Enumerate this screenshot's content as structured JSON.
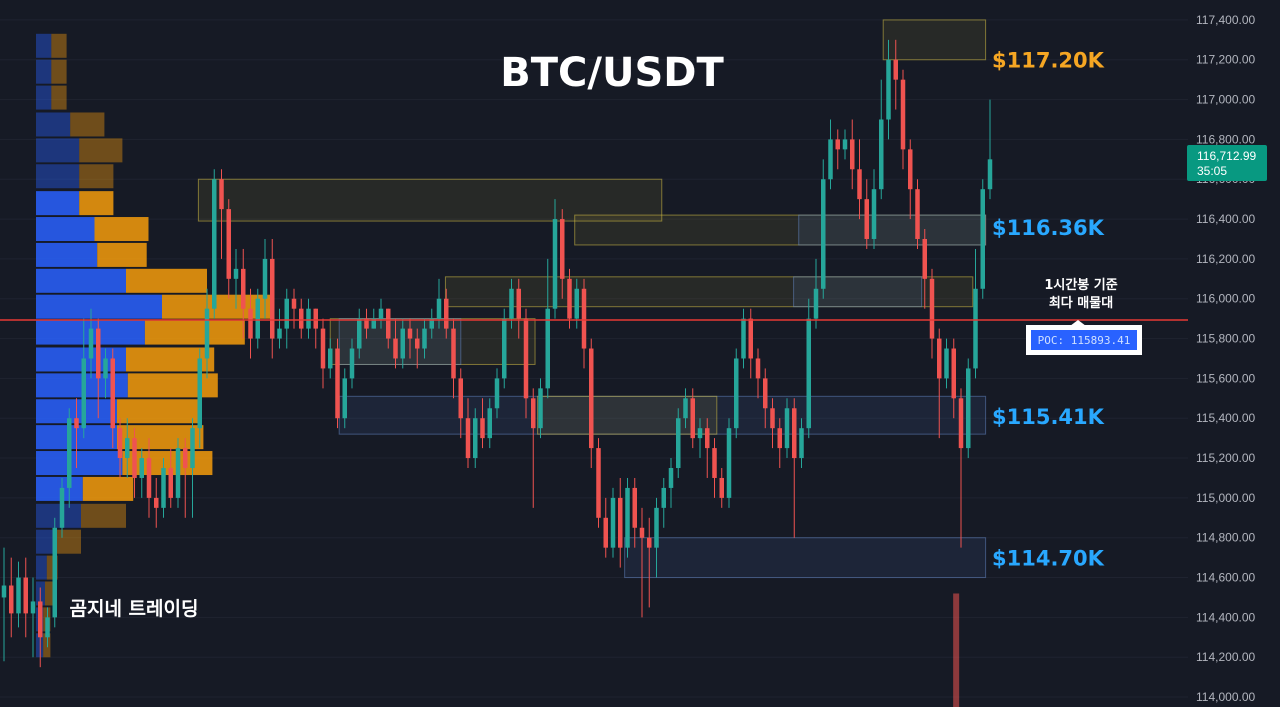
{
  "header": {
    "title": "BTC/USDT"
  },
  "watermark": "곰지네 트레이딩",
  "annotation": {
    "line1": "1시간봉 기준",
    "line2": "최다 매물대"
  },
  "poc_label": "POC: 115893.41",
  "current_price": {
    "price": "116,712.99",
    "countdown": "35:05",
    "color": "#089981"
  },
  "colors": {
    "up": "#26a69a",
    "down": "#ef5350",
    "poc_line": "#e53935",
    "level_gold": "#f5a623",
    "level_blue": "#29a8ff",
    "vp_blue": "#2962ff",
    "vp_orange": "#f59c0c"
  },
  "chart_data": {
    "type": "candlestick",
    "title": "BTC/USDT",
    "ylim": [
      113950,
      117500
    ],
    "y_ticks": [
      "117,400.00",
      "117,200.00",
      "117,000.00",
      "116,800.00",
      "116,600.00",
      "116,400.00",
      "116,200.00",
      "116,000.00",
      "115,800.00",
      "115,600.00",
      "115,400.00",
      "115,200.00",
      "115,000.00",
      "114,800.00",
      "114,600.00",
      "114,400.00",
      "114,200.00",
      "114,000.00"
    ],
    "y_tick_values": [
      117400,
      117200,
      117000,
      116800,
      116600,
      116400,
      116200,
      116000,
      115800,
      115600,
      115400,
      115200,
      115000,
      114800,
      114600,
      114400,
      114200,
      114000
    ],
    "poc": 115893.41,
    "levels": [
      {
        "label": "$117.20K",
        "value": 117200,
        "color": "#f5a623"
      },
      {
        "label": "$116.36K",
        "value": 116360,
        "color": "#29a8ff"
      },
      {
        "label": "$115.41K",
        "value": 115410,
        "color": "#29a8ff"
      },
      {
        "label": "$114.70K",
        "value": 114700,
        "color": "#29a8ff"
      }
    ],
    "zones": [
      {
        "kind": "supply",
        "x_start": 0.155,
        "x_end": 0.517,
        "top": 116600,
        "bottom": 116390
      },
      {
        "kind": "supply",
        "x_start": 0.449,
        "x_end": 0.77,
        "top": 116420,
        "bottom": 116270
      },
      {
        "kind": "demand",
        "x_start": 0.624,
        "x_end": 0.77,
        "top": 116420,
        "bottom": 116270
      },
      {
        "kind": "supply",
        "x_start": 0.348,
        "x_end": 0.76,
        "top": 116110,
        "bottom": 115960
      },
      {
        "kind": "demand",
        "x_start": 0.62,
        "x_end": 0.72,
        "top": 116110,
        "bottom": 115960
      },
      {
        "kind": "supply",
        "x_start": 0.258,
        "x_end": 0.418,
        "top": 115900,
        "bottom": 115670
      },
      {
        "kind": "demand",
        "x_start": 0.265,
        "x_end": 0.36,
        "top": 115900,
        "bottom": 115670
      },
      {
        "kind": "demand",
        "x_start": 0.265,
        "x_end": 0.77,
        "top": 115510,
        "bottom": 115320
      },
      {
        "kind": "supply",
        "x_start": 0.42,
        "x_end": 0.56,
        "top": 115510,
        "bottom": 115320
      },
      {
        "kind": "supply",
        "x_start": 0.69,
        "x_end": 0.77,
        "top": 117400,
        "bottom": 117200
      },
      {
        "kind": "demand",
        "x_start": 0.488,
        "x_end": 0.77,
        "top": 114800,
        "bottom": 114600
      }
    ],
    "volume_profile": [
      {
        "price": 117270,
        "buy": 0.17,
        "sell": 0.17
      },
      {
        "price": 117140,
        "buy": 0.17,
        "sell": 0.17
      },
      {
        "price": 117010,
        "buy": 0.17,
        "sell": 0.17
      },
      {
        "price": 116875,
        "buy": 0.38,
        "sell": 0.38
      },
      {
        "price": 116745,
        "buy": 0.48,
        "sell": 0.48
      },
      {
        "price": 116615,
        "buy": 0.48,
        "sell": 0.38
      },
      {
        "price": 116480,
        "buy": 0.48,
        "sell": 0.38
      },
      {
        "price": 116350,
        "buy": 0.65,
        "sell": 0.6
      },
      {
        "price": 116220,
        "buy": 0.68,
        "sell": 0.55
      },
      {
        "price": 116090,
        "buy": 1.0,
        "sell": 0.9
      },
      {
        "price": 115960,
        "buy": 1.4,
        "sell": 1.25
      },
      {
        "price": 115830,
        "buy": 1.21,
        "sell": 1.11
      },
      {
        "price": 115695,
        "buy": 1.0,
        "sell": 0.98
      },
      {
        "price": 115565,
        "buy": 1.02,
        "sell": 1.0
      },
      {
        "price": 115435,
        "buy": 0.9,
        "sell": 0.92
      },
      {
        "price": 115305,
        "buy": 0.9,
        "sell": 0.96
      },
      {
        "price": 115175,
        "buy": 0.96,
        "sell": 1.0
      },
      {
        "price": 115045,
        "buy": 0.52,
        "sell": 0.56
      },
      {
        "price": 114910,
        "buy": 0.5,
        "sell": 0.5
      },
      {
        "price": 114780,
        "buy": 0.2,
        "sell": 0.3
      },
      {
        "price": 114650,
        "buy": 0.12,
        "sell": 0.12
      },
      {
        "price": 114520,
        "buy": 0.1,
        "sell": 0.1
      },
      {
        "price": 114390,
        "buy": 0.08,
        "sell": 0.08
      },
      {
        "price": 114260,
        "buy": 0.08,
        "sell": 0.08
      }
    ],
    "volume_spike": {
      "x_pos": 0.747,
      "value": 114520
    },
    "candles": [
      [
        114500,
        114560,
        114180,
        114750
      ],
      [
        114560,
        114420,
        114300,
        114700
      ],
      [
        114420,
        114600,
        114350,
        114680
      ],
      [
        114600,
        114420,
        114300,
        114700
      ],
      [
        114420,
        114480,
        114200,
        114600
      ],
      [
        114480,
        114300,
        114150,
        114550
      ],
      [
        114300,
        114400,
        114250,
        114450
      ],
      [
        114400,
        114850,
        114350,
        114900
      ],
      [
        114850,
        115050,
        114800,
        115100
      ],
      [
        115050,
        115400,
        114950,
        115450
      ],
      [
        115400,
        115350,
        115150,
        115500
      ],
      [
        115350,
        115700,
        115300,
        115900
      ],
      [
        115700,
        115850,
        115600,
        115950
      ],
      [
        115850,
        115600,
        115400,
        115900
      ],
      [
        115600,
        115700,
        115500,
        115750
      ],
      [
        115700,
        115350,
        115250,
        115750
      ],
      [
        115350,
        115200,
        115100,
        115400
      ],
      [
        115200,
        115300,
        115100,
        115400
      ],
      [
        115300,
        115100,
        115000,
        115350
      ],
      [
        115100,
        115200,
        115000,
        115250
      ],
      [
        115200,
        115000,
        114900,
        115300
      ],
      [
        115000,
        114950,
        114850,
        115100
      ],
      [
        114950,
        115150,
        114900,
        115200
      ],
      [
        115150,
        115000,
        114950,
        115250
      ],
      [
        115000,
        115250,
        114950,
        115300
      ],
      [
        115250,
        115150,
        114900,
        115300
      ],
      [
        115150,
        115350,
        114900,
        115400
      ],
      [
        115350,
        115700,
        115250,
        115750
      ],
      [
        115700,
        115950,
        115600,
        116050
      ],
      [
        115950,
        116600,
        115900,
        116650
      ],
      [
        116600,
        116450,
        116200,
        116650
      ],
      [
        116450,
        116100,
        116000,
        116500
      ],
      [
        116100,
        116150,
        115950,
        116250
      ],
      [
        116150,
        115950,
        115800,
        116250
      ],
      [
        115950,
        115800,
        115700,
        116050
      ],
      [
        115800,
        116000,
        115750,
        116050
      ],
      [
        116000,
        116200,
        115900,
        116300
      ],
      [
        116200,
        115800,
        115700,
        116300
      ],
      [
        115800,
        115850,
        115750,
        115950
      ],
      [
        115850,
        116000,
        115750,
        116050
      ],
      [
        116000,
        115950,
        115850,
        116050
      ],
      [
        115950,
        115850,
        115800,
        116000
      ],
      [
        115850,
        115950,
        115800,
        116000
      ],
      [
        115950,
        115850,
        115750,
        115950
      ],
      [
        115850,
        115650,
        115550,
        115900
      ],
      [
        115650,
        115750,
        115600,
        115800
      ],
      [
        115750,
        115400,
        115350,
        115800
      ],
      [
        115400,
        115600,
        115350,
        115650
      ],
      [
        115600,
        115750,
        115550,
        115800
      ],
      [
        115750,
        115900,
        115700,
        115950
      ],
      [
        115900,
        115850,
        115800,
        115950
      ],
      [
        115850,
        115900,
        115850,
        115950
      ],
      [
        115900,
        115950,
        115850,
        116000
      ],
      [
        115950,
        115800,
        115750,
        115950
      ],
      [
        115800,
        115700,
        115650,
        115900
      ],
      [
        115700,
        115850,
        115650,
        115900
      ],
      [
        115850,
        115800,
        115700,
        115900
      ],
      [
        115800,
        115750,
        115650,
        115850
      ],
      [
        115750,
        115850,
        115700,
        115900
      ],
      [
        115850,
        115900,
        115800,
        115950
      ],
      [
        115900,
        116000,
        115850,
        116100
      ],
      [
        116000,
        115850,
        115800,
        116050
      ],
      [
        115850,
        115600,
        115500,
        115900
      ],
      [
        115600,
        115400,
        115300,
        115650
      ],
      [
        115400,
        115200,
        115150,
        115500
      ],
      [
        115200,
        115400,
        115150,
        115450
      ],
      [
        115400,
        115300,
        115250,
        115500
      ],
      [
        115300,
        115450,
        115250,
        115500
      ],
      [
        115450,
        115600,
        115400,
        115650
      ],
      [
        115600,
        115900,
        115550,
        115950
      ],
      [
        115900,
        116050,
        115850,
        116100
      ],
      [
        116050,
        115900,
        115800,
        116100
      ],
      [
        115900,
        115500,
        115400,
        115950
      ],
      [
        115500,
        115350,
        114950,
        115550
      ],
      [
        115350,
        115550,
        115300,
        115600
      ],
      [
        115550,
        115950,
        115500,
        116200
      ],
      [
        115950,
        116400,
        115900,
        116500
      ],
      [
        116400,
        116100,
        116000,
        116450
      ],
      [
        116100,
        115900,
        115850,
        116150
      ],
      [
        115900,
        116050,
        115850,
        116100
      ],
      [
        116050,
        115750,
        115650,
        116100
      ],
      [
        115750,
        115250,
        115150,
        115800
      ],
      [
        115250,
        114900,
        114850,
        115300
      ],
      [
        114900,
        114750,
        114700,
        115000
      ],
      [
        114750,
        115000,
        114700,
        115050
      ],
      [
        115000,
        114750,
        114650,
        115100
      ],
      [
        114750,
        115050,
        114700,
        115100
      ],
      [
        115050,
        114850,
        114750,
        115100
      ],
      [
        114850,
        114800,
        114400,
        114950
      ],
      [
        114800,
        114750,
        114450,
        114900
      ],
      [
        114750,
        114950,
        114600,
        115000
      ],
      [
        114950,
        115050,
        114850,
        115100
      ],
      [
        115050,
        115150,
        114950,
        115200
      ],
      [
        115150,
        115400,
        115100,
        115450
      ],
      [
        115400,
        115500,
        115350,
        115550
      ],
      [
        115500,
        115300,
        115250,
        115550
      ],
      [
        115300,
        115350,
        115200,
        115400
      ],
      [
        115350,
        115250,
        115100,
        115400
      ],
      [
        115250,
        115100,
        115000,
        115300
      ],
      [
        115100,
        115000,
        114950,
        115150
      ],
      [
        115000,
        115350,
        114950,
        115400
      ],
      [
        115350,
        115700,
        115300,
        115750
      ],
      [
        115700,
        115900,
        115650,
        115950
      ],
      [
        115900,
        115700,
        115600,
        115950
      ],
      [
        115700,
        115600,
        115500,
        115750
      ],
      [
        115600,
        115450,
        115350,
        115650
      ],
      [
        115450,
        115350,
        115250,
        115500
      ],
      [
        115350,
        115250,
        115150,
        115400
      ],
      [
        115250,
        115450,
        115200,
        115500
      ],
      [
        115450,
        115200,
        114800,
        115500
      ],
      [
        115200,
        115350,
        115150,
        115400
      ],
      [
        115350,
        115900,
        115300,
        116000
      ],
      [
        115900,
        116050,
        115850,
        116200
      ],
      [
        116050,
        116600,
        116000,
        116700
      ],
      [
        116600,
        116800,
        116550,
        116900
      ],
      [
        116800,
        116750,
        116650,
        116850
      ],
      [
        116750,
        116800,
        116700,
        116850
      ],
      [
        116800,
        116650,
        116550,
        116900
      ],
      [
        116650,
        116500,
        116400,
        116800
      ],
      [
        116500,
        116300,
        116250,
        116600
      ],
      [
        116300,
        116550,
        116250,
        116650
      ],
      [
        116550,
        116900,
        116500,
        117100
      ],
      [
        116900,
        117200,
        116800,
        117300
      ],
      [
        117200,
        117100,
        116950,
        117300
      ],
      [
        117100,
        116750,
        116650,
        117150
      ],
      [
        116750,
        116550,
        116400,
        116800
      ],
      [
        116550,
        116300,
        116250,
        116600
      ],
      [
        116300,
        116100,
        115950,
        116350
      ],
      [
        116100,
        115800,
        115700,
        116150
      ],
      [
        115800,
        115600,
        115300,
        115850
      ],
      [
        115600,
        115750,
        115550,
        115800
      ],
      [
        115750,
        115500,
        115400,
        115800
      ],
      [
        115500,
        115250,
        114750,
        115550
      ],
      [
        115250,
        115650,
        115200,
        115700
      ],
      [
        115650,
        116050,
        115600,
        116250
      ],
      [
        116050,
        116550,
        116000,
        116600
      ],
      [
        116550,
        116700,
        116500,
        117000
      ]
    ]
  }
}
